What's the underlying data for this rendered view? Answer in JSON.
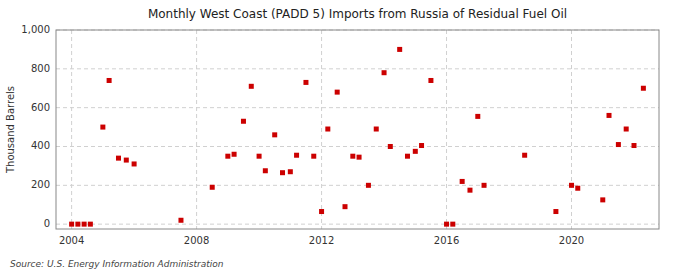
{
  "chart_data": {
    "type": "scatter",
    "title": "Monthly West Coast (PADD 5) Imports from Russia of Residual Fuel Oil",
    "ylabel": "Thousand Barrels",
    "source": "Source: U.S. Energy Information Administration",
    "color": "#cc0000",
    "marker": "square",
    "grid": true,
    "xlim": [
      2003.5,
      2022.8
    ],
    "ylim": [
      -25,
      1000
    ],
    "xticks": [
      2004,
      2008,
      2012,
      2016,
      2020
    ],
    "yticks": [
      0,
      200,
      400,
      600,
      800,
      {
        "value": 1000,
        "label": "1,000"
      }
    ],
    "x": [
      2004.0,
      2004.2,
      2004.4,
      2004.6,
      2005.0,
      2005.2,
      2005.5,
      2005.75,
      2006.0,
      2007.5,
      2008.5,
      2009.0,
      2009.2,
      2009.5,
      2009.75,
      2010.0,
      2010.2,
      2010.5,
      2010.75,
      2011.0,
      2011.2,
      2011.5,
      2011.75,
      2012.0,
      2012.2,
      2012.5,
      2012.75,
      2013.0,
      2013.2,
      2013.5,
      2013.75,
      2014.0,
      2014.2,
      2014.5,
      2014.75,
      2015.0,
      2015.2,
      2015.5,
      2016.0,
      2016.2,
      2016.5,
      2016.75,
      2017.0,
      2017.2,
      2018.5,
      2019.5,
      2020.0,
      2020.2,
      2021.0,
      2021.2,
      2021.5,
      2021.75,
      2022.0,
      2022.3
    ],
    "values": [
      0,
      0,
      0,
      0,
      500,
      740,
      340,
      330,
      310,
      20,
      190,
      350,
      360,
      530,
      710,
      350,
      275,
      460,
      265,
      270,
      355,
      730,
      350,
      65,
      490,
      680,
      90,
      350,
      345,
      200,
      490,
      780,
      400,
      900,
      350,
      375,
      405,
      740,
      0,
      0,
      220,
      175,
      555,
      200,
      355,
      65,
      200,
      185,
      125,
      560,
      410,
      490,
      405,
      700
    ]
  }
}
